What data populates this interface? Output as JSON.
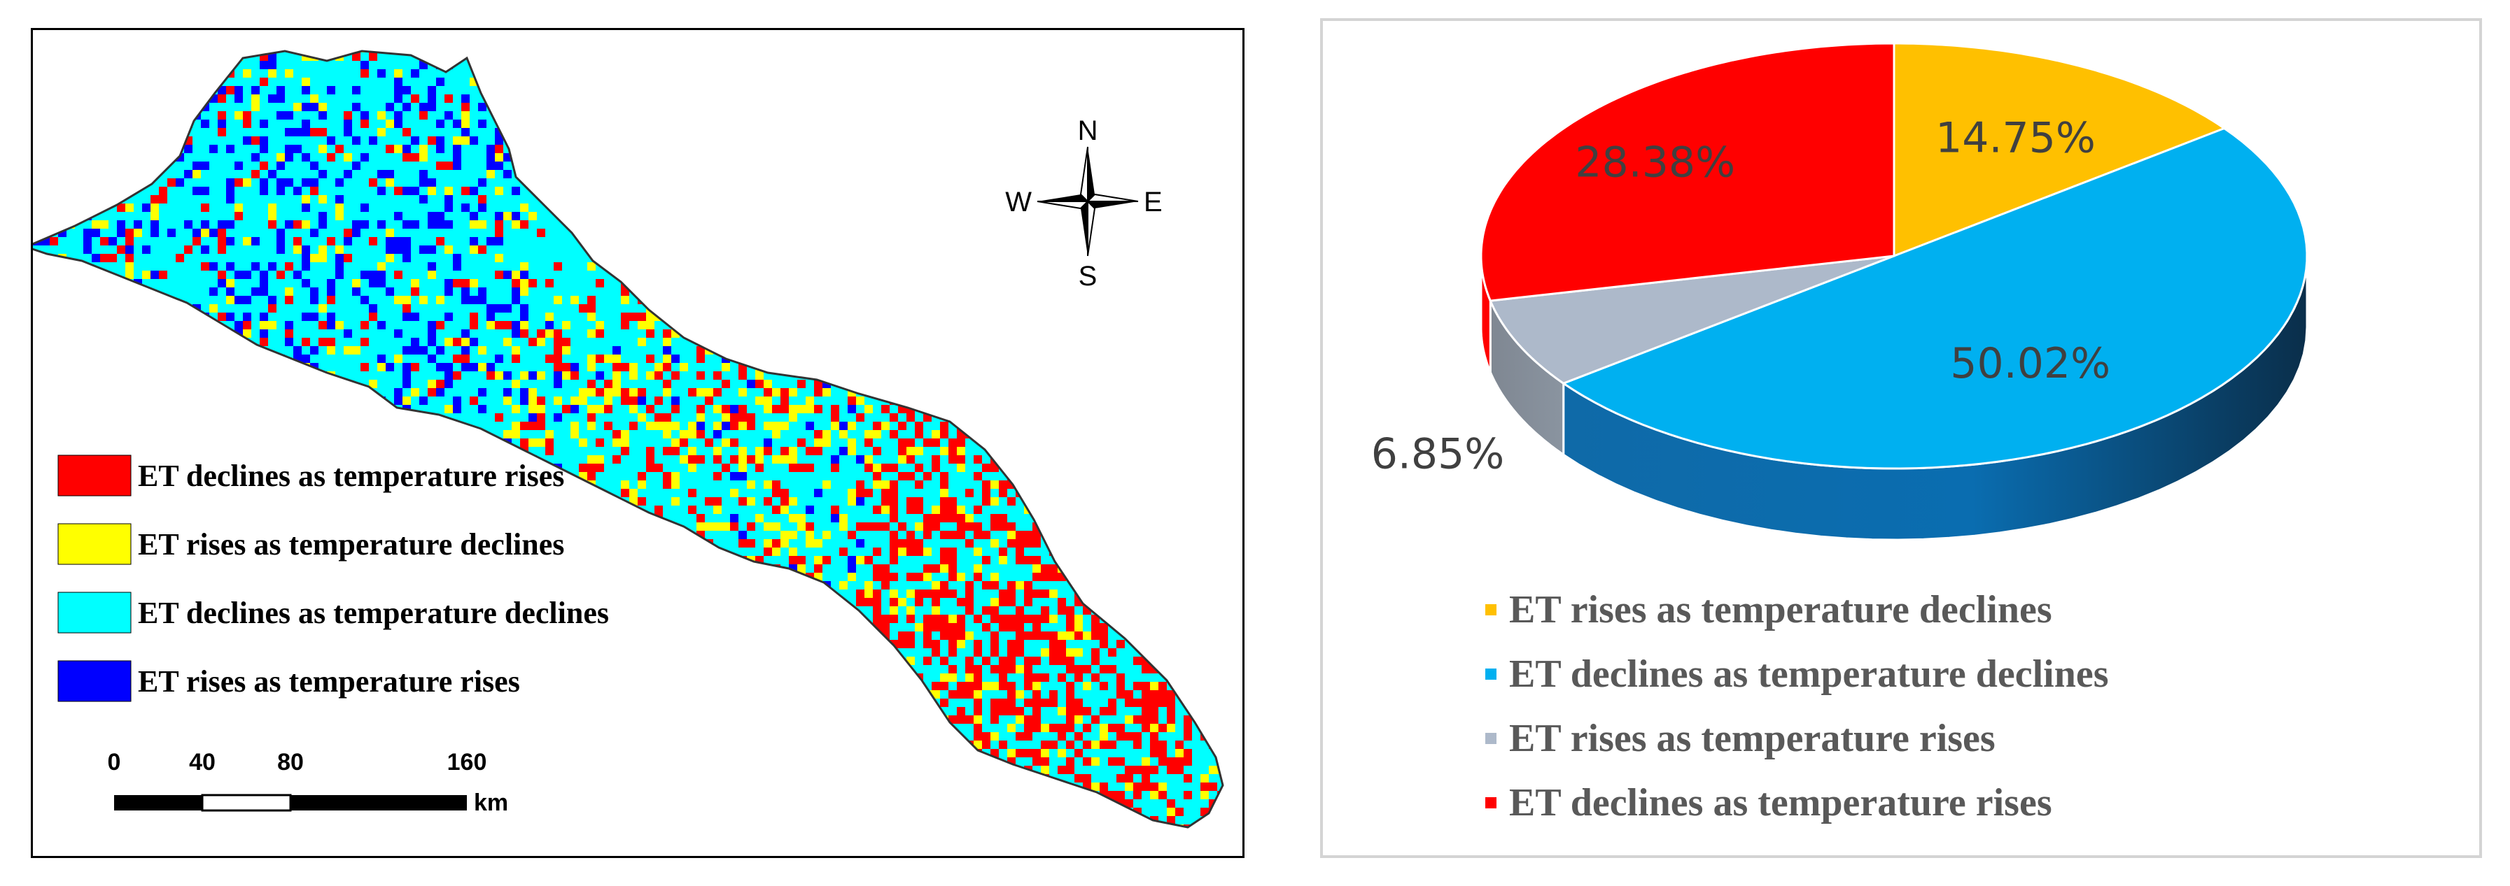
{
  "map": {
    "legend": [
      {
        "label": "ET declines as temperature rises",
        "color": "#ff0000"
      },
      {
        "label": "ET rises as temperature declines",
        "color": "#ffff00"
      },
      {
        "label": "ET declines as temperature declines",
        "color": "#00ffff"
      },
      {
        "label": "ET rises as temperature rises",
        "color": "#0000ff"
      }
    ],
    "compass": {
      "n": "N",
      "s": "S",
      "e": "E",
      "w": "W"
    },
    "scale": {
      "ticks": [
        "0",
        "40",
        "80",
        "160"
      ],
      "unit": "km"
    }
  },
  "chart_data": {
    "type": "pie",
    "style": "3d",
    "slices": [
      {
        "name": "ET rises as temperature declines",
        "value": 14.75,
        "label": "14.75%",
        "color": "#ffc000"
      },
      {
        "name": "ET declines as temperature declines",
        "value": 50.02,
        "label": "50.02%",
        "color": "#00b0f0"
      },
      {
        "name": "ET rises as temperature rises",
        "value": 6.85,
        "label": "6.85%",
        "color": "#adb9ca"
      },
      {
        "name": "ET declines as temperature rises",
        "value": 28.38,
        "label": "28.38%",
        "color": "#ff0000"
      }
    ],
    "legend_order": [
      0,
      1,
      2,
      3
    ]
  }
}
